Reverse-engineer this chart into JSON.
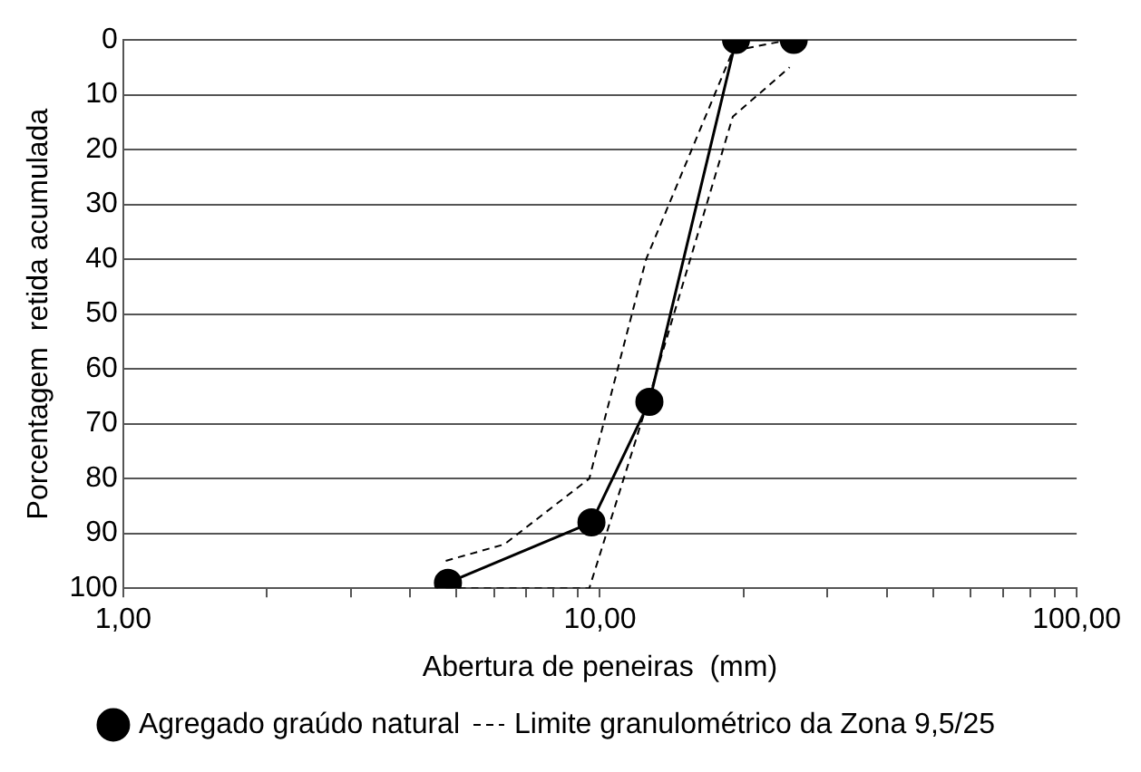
{
  "chart_data": {
    "type": "line",
    "xlabel": "Abertura de peneiras  (mm)",
    "ylabel": "Porcentagem  retida acumulada",
    "log": "x",
    "xlim": [
      1,
      100
    ],
    "xticks": [
      {
        "value": 1,
        "label": "1,00"
      },
      {
        "value": 2,
        "label": null
      },
      {
        "value": 3,
        "label": null
      },
      {
        "value": 4,
        "label": null
      },
      {
        "value": 5,
        "label": null
      },
      {
        "value": 6,
        "label": null
      },
      {
        "value": 7,
        "label": null
      },
      {
        "value": 8,
        "label": null
      },
      {
        "value": 9,
        "label": null
      },
      {
        "value": 10,
        "label": "10,00"
      },
      {
        "value": 20,
        "label": null
      },
      {
        "value": 30,
        "label": null
      },
      {
        "value": 40,
        "label": null
      },
      {
        "value": 50,
        "label": null
      },
      {
        "value": 60,
        "label": null
      },
      {
        "value": 70,
        "label": null
      },
      {
        "value": 80,
        "label": null
      },
      {
        "value": 90,
        "label": null
      },
      {
        "value": 100,
        "label": "100,00"
      }
    ],
    "ylim": [
      100,
      0
    ],
    "yticks": [
      0,
      10,
      20,
      30,
      40,
      50,
      60,
      70,
      80,
      90,
      100
    ],
    "grid": "y",
    "legend": "bottom",
    "series": [
      {
        "name": "Agregado graúdo natural",
        "color": "#000000",
        "marker": "circle",
        "line_style": "solid",
        "x": [
          4.8,
          9.6,
          12.7,
          19.3,
          25.5
        ],
        "values": [
          99,
          88,
          66,
          0,
          0
        ]
      },
      {
        "name": "Limite granulométrico da Zona 9,5/25",
        "color": "#000000",
        "marker": "none",
        "line_style": "dashed",
        "x": [
          4.75,
          6.3,
          9.5,
          12.5,
          19,
          25
        ],
        "values": [
          95,
          92,
          80,
          40,
          2,
          0
        ]
      },
      {
        "color": "#000000",
        "marker": "none",
        "line_style": "dashed",
        "x": [
          4.75,
          6.3,
          9.5,
          12.5,
          19,
          25
        ],
        "values": [
          100,
          100,
          100,
          67,
          14,
          5
        ]
      }
    ]
  }
}
